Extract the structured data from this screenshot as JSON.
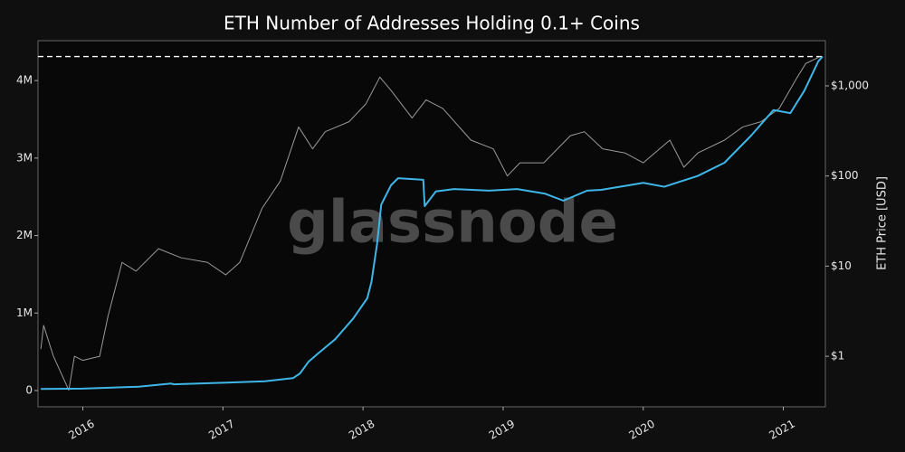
{
  "chart_data": {
    "type": "line",
    "title": "ETH Number of Addresses Holding 0.1+ Coins",
    "watermark": "glassnode",
    "y2label": "ETH Price [USD]",
    "xlim": [
      2015.68,
      2021.3
    ],
    "xticks": [
      2016,
      2017,
      2018,
      2019,
      2020,
      2021
    ],
    "ylim": [
      -210000,
      4515000
    ],
    "yticks": [
      0,
      {
        "value": 1000000,
        "label": "1M"
      },
      {
        "value": 2000000,
        "label": "2M"
      },
      {
        "value": 3000000,
        "label": "3M"
      },
      {
        "value": 4000000,
        "label": "4M"
      }
    ],
    "y2lim": [
      0.275,
      3170
    ],
    "y2_scale": "log",
    "y2ticks": [
      {
        "value": 1,
        "label": "$1"
      },
      {
        "value": 10,
        "label": "$10"
      },
      {
        "value": 100,
        "label": "$100"
      },
      {
        "value": 1000,
        "label": "$1,000"
      }
    ],
    "reference_line": 4310000,
    "grid": false,
    "series": [
      {
        "name": "Addresses",
        "color": "#3fb6e8",
        "axis": "y",
        "x": [
          2015.7,
          2016.0,
          2016.4,
          2016.63,
          2016.65,
          2017.0,
          2017.3,
          2017.5,
          2017.55,
          2017.61,
          2017.68,
          2017.8,
          2017.93,
          2018.03,
          2018.06,
          2018.1,
          2018.13,
          2018.2,
          2018.25,
          2018.43,
          2018.44,
          2018.52,
          2018.65,
          2018.9,
          2019.1,
          2019.3,
          2019.43,
          2019.6,
          2019.7,
          2019.9,
          2020.0,
          2020.15,
          2020.39,
          2020.58,
          2020.77,
          2020.93,
          2021.05,
          2021.15,
          2021.25,
          2021.28
        ],
        "values": [
          20000,
          25000,
          50000,
          90000,
          80000,
          100000,
          120000,
          160000,
          220000,
          370000,
          480000,
          660000,
          930000,
          1190000,
          1400000,
          1890000,
          2400000,
          2650000,
          2740000,
          2720000,
          2380000,
          2570000,
          2600000,
          2580000,
          2600000,
          2540000,
          2450000,
          2580000,
          2590000,
          2650000,
          2680000,
          2630000,
          2770000,
          2940000,
          3290000,
          3620000,
          3580000,
          3870000,
          4250000,
          4310000
        ]
      },
      {
        "name": "ETH Price",
        "color": "#9a9a9a",
        "axis": "y2",
        "x": [
          2015.7,
          2015.72,
          2015.79,
          2015.9,
          2015.94,
          2016.0,
          2016.12,
          2016.18,
          2016.28,
          2016.38,
          2016.54,
          2016.7,
          2016.89,
          2017.02,
          2017.12,
          2017.28,
          2017.41,
          2017.54,
          2017.64,
          2017.73,
          2017.9,
          2018.02,
          2018.12,
          2018.2,
          2018.35,
          2018.45,
          2018.57,
          2018.77,
          2018.93,
          2019.03,
          2019.12,
          2019.29,
          2019.48,
          2019.58,
          2019.71,
          2019.87,
          2020.0,
          2020.19,
          2020.29,
          2020.39,
          2020.58,
          2020.71,
          2020.84,
          2020.97,
          2021.1,
          2021.16,
          2021.26
        ],
        "values": [
          1.2,
          2.2,
          1.0,
          0.42,
          1.0,
          0.9,
          1.0,
          2.8,
          11,
          8.8,
          15.6,
          12.4,
          11,
          8,
          11,
          44,
          88,
          350,
          200,
          310,
          400,
          630,
          1250,
          890,
          440,
          700,
          560,
          250,
          200,
          100,
          140,
          140,
          280,
          310,
          200,
          180,
          140,
          250,
          125,
          180,
          250,
          350,
          400,
          560,
          1250,
          1770,
          2100
        ]
      }
    ]
  }
}
